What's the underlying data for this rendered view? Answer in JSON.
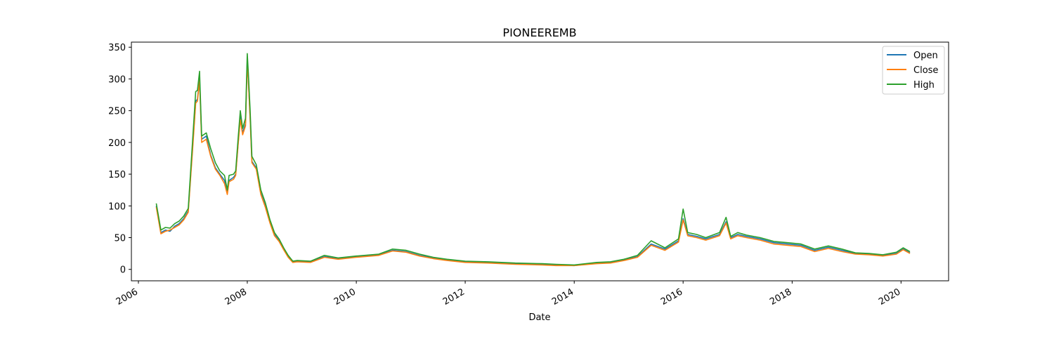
{
  "chart_data": {
    "type": "line",
    "title": "PIONEEREMB",
    "xlabel": "Date",
    "ylabel": "",
    "x_axis_type": "date",
    "xlim": [
      "2005-11-15",
      "2020-11-15"
    ],
    "ylim": [
      -18,
      358
    ],
    "xticks": [
      "2006",
      "2008",
      "2010",
      "2012",
      "2014",
      "2016",
      "2018",
      "2020"
    ],
    "yticks": [
      0,
      50,
      100,
      150,
      200,
      250,
      300,
      350
    ],
    "grid": false,
    "legend": {
      "position": "top-right",
      "entries": [
        "Open",
        "Close",
        "High"
      ]
    },
    "colors": {
      "Open": "#1f77b4",
      "Close": "#ff7f0e",
      "High": "#2ca02c"
    },
    "x": [
      "2006-05-01",
      "2006-06-01",
      "2006-07-01",
      "2006-08-01",
      "2006-09-01",
      "2006-10-01",
      "2006-11-01",
      "2006-12-01",
      "2007-01-01",
      "2007-01-20",
      "2007-02-01",
      "2007-02-15",
      "2007-03-01",
      "2007-04-01",
      "2007-05-01",
      "2007-06-01",
      "2007-07-01",
      "2007-08-01",
      "2007-08-20",
      "2007-09-01",
      "2007-10-01",
      "2007-10-15",
      "2007-11-01",
      "2007-11-15",
      "2007-12-01",
      "2007-12-20",
      "2008-01-01",
      "2008-01-08",
      "2008-01-20",
      "2008-02-01",
      "2008-03-01",
      "2008-04-01",
      "2008-05-01",
      "2008-06-01",
      "2008-07-01",
      "2008-08-01",
      "2008-09-01",
      "2008-10-01",
      "2008-11-01",
      "2008-12-01",
      "2009-03-01",
      "2009-06-01",
      "2009-09-01",
      "2010-01-01",
      "2010-06-01",
      "2010-09-01",
      "2010-12-01",
      "2011-03-01",
      "2011-06-01",
      "2011-09-01",
      "2012-01-01",
      "2012-06-01",
      "2012-12-01",
      "2013-06-01",
      "2013-09-01",
      "2014-01-01",
      "2014-06-01",
      "2014-09-01",
      "2014-12-01",
      "2015-03-01",
      "2015-06-01",
      "2015-09-01",
      "2015-12-01",
      "2016-01-01",
      "2016-02-01",
      "2016-04-01",
      "2016-06-01",
      "2016-09-01",
      "2016-10-15",
      "2016-11-15",
      "2017-01-01",
      "2017-03-01",
      "2017-06-01",
      "2017-09-01",
      "2017-12-01",
      "2018-03-01",
      "2018-06-01",
      "2018-09-01",
      "2018-12-01",
      "2019-03-01",
      "2019-06-01",
      "2019-09-01",
      "2019-12-01",
      "2020-01-15",
      "2020-03-01"
    ],
    "series": [
      {
        "name": "Open",
        "values": [
          100,
          58,
          62,
          60,
          68,
          72,
          80,
          92,
          200,
          265,
          268,
          300,
          205,
          210,
          180,
          160,
          150,
          140,
          120,
          140,
          145,
          150,
          200,
          240,
          215,
          230,
          330,
          300,
          240,
          170,
          160,
          120,
          100,
          75,
          55,
          45,
          32,
          20,
          12,
          13,
          12,
          20,
          17,
          20,
          23,
          30,
          28,
          22,
          18,
          15,
          12,
          11,
          9,
          8,
          7,
          6,
          10,
          11,
          15,
          20,
          40,
          32,
          45,
          80,
          55,
          52,
          48,
          55,
          75,
          50,
          55,
          52,
          48,
          42,
          40,
          38,
          30,
          35,
          30,
          25,
          24,
          22,
          25,
          32,
          26
        ]
      },
      {
        "name": "Close",
        "values": [
          98,
          56,
          60,
          62,
          66,
          70,
          78,
          90,
          195,
          262,
          265,
          298,
          200,
          205,
          178,
          158,
          148,
          135,
          118,
          138,
          142,
          148,
          198,
          236,
          212,
          226,
          325,
          298,
          236,
          168,
          158,
          118,
          98,
          73,
          53,
          44,
          31,
          19,
          11,
          12,
          11,
          19,
          16,
          19,
          22,
          29,
          27,
          21,
          17,
          14,
          11,
          10,
          8,
          7,
          6,
          6,
          9,
          10,
          14,
          19,
          38,
          30,
          43,
          78,
          53,
          50,
          46,
          53,
          73,
          48,
          53,
          50,
          46,
          40,
          38,
          36,
          28,
          33,
          28,
          24,
          23,
          21,
          24,
          31,
          25
        ]
      },
      {
        "name": "High",
        "values": [
          104,
          62,
          66,
          65,
          72,
          76,
          84,
          96,
          210,
          280,
          282,
          312,
          210,
          215,
          190,
          168,
          155,
          148,
          125,
          148,
          150,
          155,
          208,
          250,
          222,
          238,
          340,
          310,
          250,
          178,
          165,
          125,
          105,
          78,
          58,
          48,
          34,
          22,
          13,
          14,
          13,
          22,
          18,
          21,
          24,
          32,
          30,
          24,
          19,
          16,
          13,
          12,
          10,
          9,
          8,
          7,
          11,
          12,
          16,
          22,
          45,
          34,
          48,
          95,
          58,
          55,
          50,
          58,
          82,
          52,
          58,
          54,
          50,
          44,
          42,
          40,
          32,
          37,
          32,
          26,
          25,
          23,
          27,
          34,
          28
        ]
      }
    ]
  }
}
